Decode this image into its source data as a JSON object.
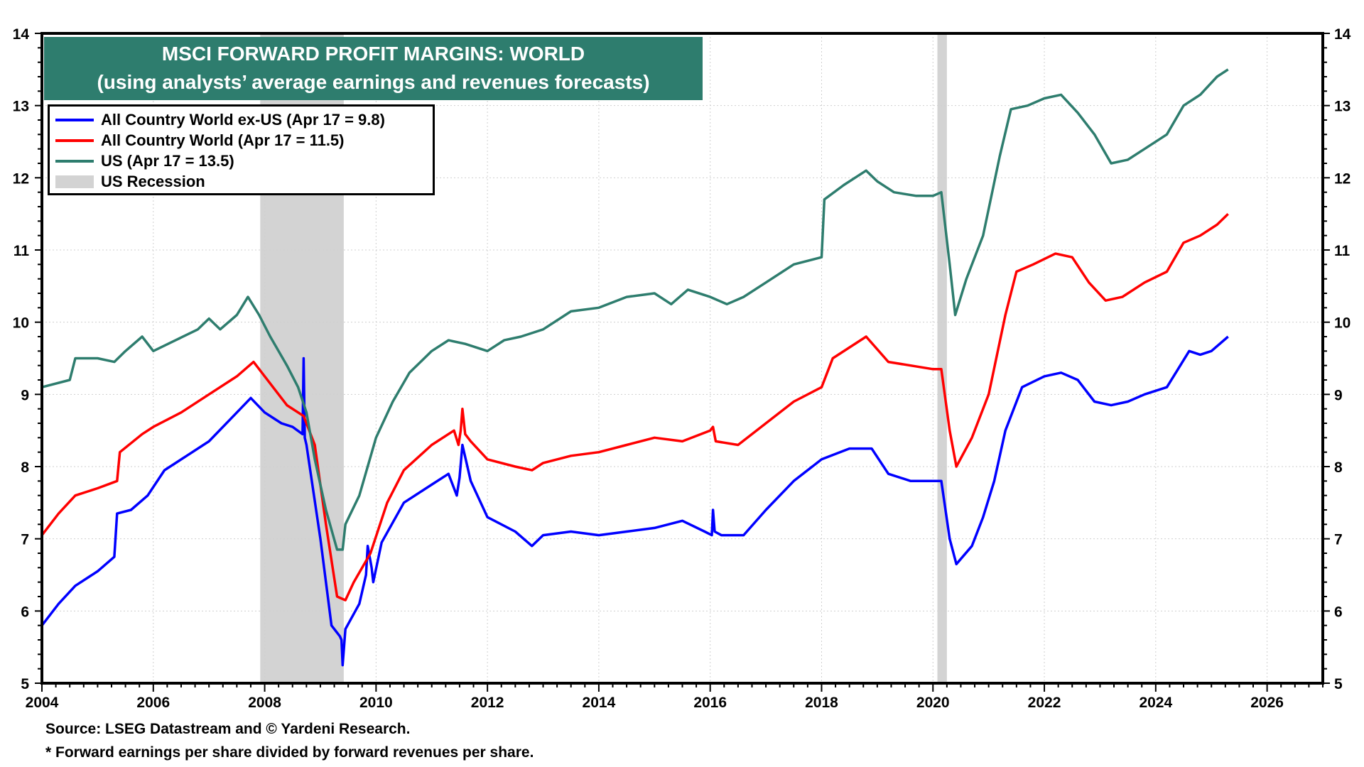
{
  "chart_data": {
    "type": "line",
    "title": "MSCI FORWARD PROFIT MARGINS: WORLD",
    "subtitle": "(using analysts’ average earnings and revenues forecasts)",
    "xlabel": "",
    "ylabel": "",
    "xlim": [
      2004,
      2027
    ],
    "ylim": [
      5,
      14
    ],
    "x_ticks": [
      "2004",
      "2006",
      "2008",
      "2010",
      "2012",
      "2014",
      "2016",
      "2018",
      "2020",
      "2022",
      "2024",
      "2026"
    ],
    "x_tick_values": [
      2004,
      2006,
      2008,
      2010,
      2012,
      2014,
      2016,
      2018,
      2020,
      2022,
      2024,
      2026
    ],
    "y_ticks_left": [
      "5",
      "6",
      "7",
      "8",
      "9",
      "10",
      "11",
      "12",
      "13",
      "14"
    ],
    "y_ticks_right": [
      "5",
      "6",
      "7",
      "8",
      "9",
      "10",
      "11",
      "12",
      "13",
      "14"
    ],
    "y_tick_values": [
      5,
      6,
      7,
      8,
      9,
      10,
      11,
      12,
      13,
      14
    ],
    "grid": true,
    "legend_position": "top-left",
    "recessions": [
      {
        "label": "US Recession",
        "start": 2007.92,
        "end": 2009.42
      },
      {
        "label": "US Recession",
        "start": 2020.08,
        "end": 2020.25
      }
    ],
    "recession_color": "#d3d3d3",
    "series": [
      {
        "name": "All Country World ex-US (Apr 17 = 9.8)",
        "color": "#0000ff",
        "x": [
          2004.0,
          2004.3,
          2004.6,
          2005.0,
          2005.3,
          2005.35,
          2005.6,
          2005.9,
          2006.2,
          2006.6,
          2007.0,
          2007.5,
          2007.75,
          2008.0,
          2008.3,
          2008.5,
          2008.68,
          2008.7,
          2008.72,
          2008.75,
          2009.0,
          2009.2,
          2009.35,
          2009.38,
          2009.4,
          2009.45,
          2009.7,
          2009.82,
          2009.85,
          2009.92,
          2009.95,
          2010.1,
          2010.5,
          2011.0,
          2011.3,
          2011.45,
          2011.5,
          2011.55,
          2011.7,
          2012.0,
          2012.5,
          2012.8,
          2013.0,
          2013.5,
          2014.0,
          2014.5,
          2015.0,
          2015.5,
          2015.9,
          2016.03,
          2016.05,
          2016.08,
          2016.2,
          2016.6,
          2017.0,
          2017.5,
          2018.0,
          2018.5,
          2018.9,
          2019.2,
          2019.6,
          2020.0,
          2020.15,
          2020.3,
          2020.42,
          2020.7,
          2020.9,
          2021.1,
          2021.3,
          2021.6,
          2022.0,
          2022.3,
          2022.6,
          2022.9,
          2023.2,
          2023.5,
          2023.8,
          2024.2,
          2024.4,
          2024.6,
          2024.8,
          2025.0,
          2025.3
        ],
        "values": [
          5.8,
          6.1,
          6.35,
          6.55,
          6.75,
          7.35,
          7.4,
          7.6,
          7.95,
          8.15,
          8.35,
          8.75,
          8.95,
          8.75,
          8.6,
          8.55,
          8.45,
          9.5,
          8.4,
          8.3,
          7.0,
          5.8,
          5.65,
          5.6,
          5.25,
          5.75,
          6.1,
          6.5,
          6.9,
          6.6,
          6.4,
          6.95,
          7.5,
          7.75,
          7.9,
          7.6,
          7.85,
          8.3,
          7.8,
          7.3,
          7.1,
          6.9,
          7.05,
          7.1,
          7.05,
          7.1,
          7.15,
          7.25,
          7.1,
          7.05,
          7.4,
          7.1,
          7.05,
          7.05,
          7.4,
          7.8,
          8.1,
          8.25,
          8.25,
          7.9,
          7.8,
          7.8,
          7.8,
          7.0,
          6.65,
          6.9,
          7.3,
          7.8,
          8.5,
          9.1,
          9.25,
          9.3,
          9.2,
          8.9,
          8.85,
          8.9,
          9.0,
          9.1,
          9.35,
          9.6,
          9.55,
          9.6,
          9.8
        ]
      },
      {
        "name": "All Country World (Apr 17 = 11.5)",
        "color": "#ff0000",
        "x": [
          2004.0,
          2004.3,
          2004.6,
          2005.0,
          2005.35,
          2005.4,
          2005.8,
          2006.0,
          2006.5,
          2007.0,
          2007.5,
          2007.8,
          2008.1,
          2008.4,
          2008.7,
          2008.9,
          2009.1,
          2009.3,
          2009.45,
          2009.6,
          2009.9,
          2010.2,
          2010.5,
          2011.0,
          2011.4,
          2011.48,
          2011.52,
          2011.55,
          2011.6,
          2011.7,
          2012.0,
          2012.5,
          2012.8,
          2013.0,
          2013.5,
          2014.0,
          2014.5,
          2015.0,
          2015.5,
          2016.0,
          2016.05,
          2016.1,
          2016.5,
          2017.0,
          2017.5,
          2018.0,
          2018.2,
          2018.8,
          2019.2,
          2019.6,
          2020.0,
          2020.15,
          2020.3,
          2020.42,
          2020.7,
          2021.0,
          2021.3,
          2021.5,
          2021.8,
          2022.2,
          2022.5,
          2022.8,
          2023.1,
          2023.4,
          2023.8,
          2024.2,
          2024.5,
          2024.8,
          2025.1,
          2025.3
        ],
        "values": [
          7.05,
          7.35,
          7.6,
          7.7,
          7.8,
          8.2,
          8.45,
          8.55,
          8.75,
          9.0,
          9.25,
          9.45,
          9.15,
          8.85,
          8.7,
          8.3,
          7.2,
          6.2,
          6.15,
          6.4,
          6.8,
          7.5,
          7.95,
          8.3,
          8.5,
          8.3,
          8.5,
          8.8,
          8.45,
          8.35,
          8.1,
          8.0,
          7.95,
          8.05,
          8.15,
          8.2,
          8.3,
          8.4,
          8.35,
          8.5,
          8.55,
          8.35,
          8.3,
          8.6,
          8.9,
          9.1,
          9.5,
          9.8,
          9.45,
          9.4,
          9.35,
          9.35,
          8.5,
          8.0,
          8.4,
          9.0,
          10.1,
          10.7,
          10.8,
          10.95,
          10.9,
          10.55,
          10.3,
          10.35,
          10.55,
          10.7,
          11.1,
          11.2,
          11.35,
          11.5
        ]
      },
      {
        "name": "US (Apr 17 = 13.5)",
        "color": "#2E7D6E",
        "x": [
          2004.0,
          2004.5,
          2004.6,
          2005.0,
          2005.3,
          2005.5,
          2005.8,
          2006.0,
          2006.4,
          2006.8,
          2007.0,
          2007.2,
          2007.5,
          2007.7,
          2007.9,
          2008.1,
          2008.4,
          2008.6,
          2008.75,
          2008.9,
          2009.1,
          2009.3,
          2009.4,
          2009.45,
          2009.7,
          2010.0,
          2010.3,
          2010.6,
          2011.0,
          2011.3,
          2011.6,
          2012.0,
          2012.3,
          2012.6,
          2013.0,
          2013.5,
          2014.0,
          2014.5,
          2015.0,
          2015.3,
          2015.6,
          2016.0,
          2016.3,
          2016.6,
          2017.0,
          2017.5,
          2018.0,
          2018.05,
          2018.4,
          2018.8,
          2019.0,
          2019.3,
          2019.7,
          2020.0,
          2020.15,
          2020.3,
          2020.4,
          2020.6,
          2020.9,
          2021.2,
          2021.4,
          2021.7,
          2022.0,
          2022.3,
          2022.6,
          2022.9,
          2023.2,
          2023.5,
          2023.8,
          2024.2,
          2024.5,
          2024.8,
          2025.1,
          2025.3
        ],
        "values": [
          9.1,
          9.2,
          9.5,
          9.5,
          9.45,
          9.6,
          9.8,
          9.6,
          9.75,
          9.9,
          10.05,
          9.9,
          10.1,
          10.35,
          10.1,
          9.8,
          9.4,
          9.1,
          8.75,
          8.1,
          7.4,
          6.85,
          6.85,
          7.2,
          7.6,
          8.4,
          8.9,
          9.3,
          9.6,
          9.75,
          9.7,
          9.6,
          9.75,
          9.8,
          9.9,
          10.15,
          10.2,
          10.35,
          10.4,
          10.25,
          10.45,
          10.35,
          10.25,
          10.35,
          10.55,
          10.8,
          10.9,
          11.7,
          11.9,
          12.1,
          11.95,
          11.8,
          11.75,
          11.75,
          11.8,
          10.8,
          10.1,
          10.6,
          11.2,
          12.3,
          12.95,
          13.0,
          13.1,
          13.15,
          12.9,
          12.6,
          12.2,
          12.25,
          12.4,
          12.6,
          13.0,
          13.15,
          13.4,
          13.5
        ]
      }
    ],
    "annotations": [
      "Source: LSEG Datastream and © Yardeni Research.",
      "* Forward earnings per share divided by forward revenues per share."
    ]
  },
  "legend": {
    "items": [
      {
        "label": "All Country World ex-US (Apr 17 = 9.8)",
        "color": "#0000ff"
      },
      {
        "label": "All Country World (Apr 17 = 11.5)",
        "color": "#ff0000"
      },
      {
        "label": "US (Apr 17 = 13.5)",
        "color": "#2E7D6E"
      },
      {
        "label": "US Recession",
        "color": "#d3d3d3"
      }
    ]
  },
  "title_box": {
    "line1": "MSCI FORWARD PROFIT MARGINS: WORLD",
    "line2": "(using analysts’ average earnings and revenues forecasts)",
    "background": "#2E7D6E"
  },
  "footer": {
    "source": "Source: LSEG Datastream and © Yardeni Research.",
    "note": "* Forward earnings per share divided by forward revenues per share."
  }
}
